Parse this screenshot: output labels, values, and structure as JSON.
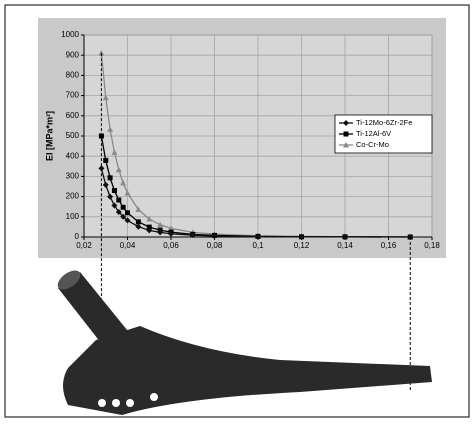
{
  "chart_data": {
    "type": "line",
    "y_label": "EI [MPa*m²]",
    "x": [
      0.028,
      0.03,
      0.032,
      0.034,
      0.036,
      0.038,
      0.04,
      0.045,
      0.05,
      0.055,
      0.06,
      0.07,
      0.08,
      0.1,
      0.12,
      0.14,
      0.17
    ],
    "series": [
      {
        "name": "Ti-12Mo-6Zr-2Fe",
        "color": "#111111",
        "marker": "diamond",
        "values": [
          340,
          258,
          199,
          156,
          124,
          100,
          82,
          51,
          33,
          23,
          16,
          9,
          5,
          2,
          1,
          1,
          0
        ]
      },
      {
        "name": "Ti-12Al-6V",
        "color": "#000000",
        "marker": "square",
        "values": [
          500,
          379,
          293,
          230,
          183,
          147,
          120,
          75,
          49,
          34,
          24,
          13,
          8,
          3,
          1,
          1,
          0
        ]
      },
      {
        "name": "Co-Cr-Mo",
        "color": "#8a8a8a",
        "marker": "triangle",
        "values": [
          910,
          690,
          533,
          419,
          333,
          268,
          218,
          136,
          89,
          61,
          43,
          23,
          14,
          6,
          3,
          1,
          1
        ]
      }
    ],
    "xlim": [
      0.02,
      0.18
    ],
    "xticks": [
      {
        "value": 0.02,
        "label": "0,02"
      },
      {
        "value": 0.04,
        "label": "0,04"
      },
      {
        "value": 0.06,
        "label": "0,06"
      },
      {
        "value": 0.08,
        "label": "0,08"
      },
      {
        "value": 0.1,
        "label": "0,1"
      },
      {
        "value": 0.12,
        "label": "0,12"
      },
      {
        "value": 0.14,
        "label": "0,14"
      },
      {
        "value": 0.16,
        "label": "0,16"
      },
      {
        "value": 0.18,
        "label": "0,18"
      }
    ],
    "ylim": [
      0,
      1000
    ],
    "yticks": [
      0,
      100,
      200,
      300,
      400,
      500,
      600,
      700,
      800,
      900,
      1000
    ],
    "grid": true,
    "legend": "right"
  }
}
